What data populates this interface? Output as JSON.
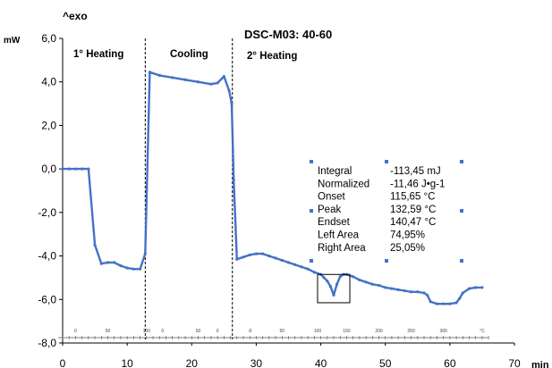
{
  "chart_data": {
    "type": "line",
    "title": "DSC-M03: 40-60",
    "ylabel_unit": "mW",
    "ylabel_direction": "^exo",
    "xlabel_unit": "min",
    "xlim": [
      0,
      70
    ],
    "ylim": [
      -8,
      6
    ],
    "yticks": [
      "6,0",
      "4,0",
      "2,0",
      "0,0",
      "-2,0",
      "-4,0",
      "-6,0",
      "-8,0"
    ],
    "yticks_values": [
      6,
      4,
      2,
      0,
      -2,
      -4,
      -6,
      -8
    ],
    "xticks": [
      "0",
      "10",
      "20",
      "30",
      "40",
      "50",
      "60",
      "70"
    ],
    "xticks_values": [
      0,
      10,
      20,
      30,
      40,
      50,
      60,
      70
    ],
    "temperature_scale": {
      "labels": [
        "0",
        "50",
        "100",
        "0",
        "50",
        "0",
        "-0",
        "50",
        "100",
        "150",
        "200",
        "250",
        "300",
        "°C"
      ],
      "label_times": [
        2,
        7,
        13,
        15.5,
        21,
        24,
        29,
        34,
        39.5,
        44,
        49,
        54,
        59,
        65
      ]
    },
    "segments": [
      {
        "label": "1° Heating"
      },
      {
        "label": "Cooling"
      },
      {
        "label": "2° Heating"
      }
    ],
    "dividers_x": [
      12.8,
      26.3
    ],
    "series": [
      {
        "color": "#4472c4",
        "x": [
          0,
          1,
          2,
          3,
          4,
          5,
          6,
          7,
          8,
          9,
          10,
          11,
          12,
          12.8,
          13.5,
          15,
          17,
          19,
          21,
          23,
          24,
          25,
          25.8,
          26.2,
          26.5,
          27,
          28,
          29,
          30,
          31,
          32,
          33,
          34,
          35,
          36,
          37,
          38,
          39,
          40,
          40.5,
          41,
          41.5,
          42,
          42.5,
          43,
          43.5,
          44,
          45,
          46,
          47,
          48,
          49,
          50,
          51,
          52,
          53,
          54,
          55,
          56,
          56.5,
          57,
          58,
          59,
          60,
          61,
          61.5,
          62,
          63,
          64,
          65
        ],
        "y": [
          0,
          0,
          0,
          0,
          0,
          -3.5,
          -4.35,
          -4.3,
          -4.3,
          -4.45,
          -4.55,
          -4.6,
          -4.6,
          -3.9,
          4.45,
          4.3,
          4.2,
          4.1,
          4.0,
          3.9,
          3.95,
          4.25,
          3.6,
          3.0,
          -0.5,
          -4.15,
          -4.05,
          -3.95,
          -3.9,
          -3.9,
          -4.0,
          -4.1,
          -4.2,
          -4.3,
          -4.4,
          -4.5,
          -4.6,
          -4.75,
          -4.85,
          -5.0,
          -5.15,
          -5.4,
          -5.8,
          -5.3,
          -4.95,
          -4.85,
          -4.85,
          -4.95,
          -5.1,
          -5.2,
          -5.3,
          -5.35,
          -5.45,
          -5.5,
          -5.55,
          -5.6,
          -5.65,
          -5.65,
          -5.7,
          -5.8,
          -6.1,
          -6.2,
          -6.2,
          -6.2,
          -6.15,
          -5.95,
          -5.7,
          -5.5,
          -5.45,
          -5.45
        ]
      }
    ],
    "peak_box": {
      "x_range": [
        39.5,
        44.5
      ],
      "y_range": [
        -6.15,
        -4.85
      ]
    },
    "results": [
      {
        "name": "Integral",
        "value": "-113,45 mJ"
      },
      {
        "name": "Normalized",
        "value": "-11,46 J•g-1"
      },
      {
        "name": "Onset",
        "value": "115,65 °C"
      },
      {
        "name": "Peak",
        "value": "132,59 °C"
      },
      {
        "name": "Endset",
        "value": "140,47 °C"
      },
      {
        "name": "Left Area",
        "value": "74,95%"
      },
      {
        "name": "Right Area",
        "value": "25,05%"
      }
    ],
    "grid": false,
    "legend": "none"
  }
}
